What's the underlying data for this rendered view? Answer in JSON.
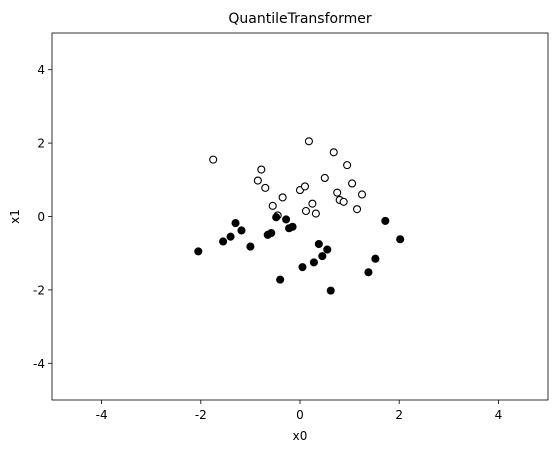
{
  "chart_data": {
    "type": "scatter",
    "title": "QuantileTransformer",
    "xlabel": "x0",
    "ylabel": "x1",
    "xlim": [
      -5,
      5
    ],
    "ylim": [
      -5,
      5
    ],
    "xticks": [
      -4,
      -2,
      0,
      2,
      4
    ],
    "yticks": [
      -4,
      -2,
      0,
      2,
      4
    ],
    "grid": false,
    "series": [
      {
        "marker": "open-circle",
        "color": "#000000",
        "fill": "#ffffff",
        "points": [
          [
            -1.75,
            1.55
          ],
          [
            -0.78,
            1.28
          ],
          [
            -0.85,
            0.98
          ],
          [
            -0.7,
            0.78
          ],
          [
            -0.35,
            0.52
          ],
          [
            -0.55,
            0.29
          ],
          [
            -0.45,
            0.03
          ],
          [
            0.0,
            0.72
          ],
          [
            0.1,
            0.82
          ],
          [
            0.18,
            2.05
          ],
          [
            0.25,
            0.35
          ],
          [
            0.12,
            0.15
          ],
          [
            0.32,
            0.08
          ],
          [
            0.5,
            1.05
          ],
          [
            0.68,
            1.75
          ],
          [
            0.75,
            0.65
          ],
          [
            0.8,
            0.45
          ],
          [
            0.88,
            0.4
          ],
          [
            0.95,
            1.4
          ],
          [
            1.05,
            0.9
          ],
          [
            1.15,
            0.2
          ],
          [
            1.25,
            0.6
          ]
        ]
      },
      {
        "marker": "filled-circle",
        "color": "#000000",
        "fill": "#000000",
        "points": [
          [
            -2.05,
            -0.95
          ],
          [
            -1.55,
            -0.68
          ],
          [
            -1.4,
            -0.55
          ],
          [
            -1.3,
            -0.18
          ],
          [
            -1.18,
            -0.38
          ],
          [
            -1.0,
            -0.82
          ],
          [
            -0.65,
            -0.5
          ],
          [
            -0.58,
            -0.45
          ],
          [
            -0.48,
            -0.02
          ],
          [
            -0.4,
            -1.72
          ],
          [
            -0.28,
            -0.08
          ],
          [
            -0.22,
            -0.32
          ],
          [
            -0.15,
            -0.28
          ],
          [
            0.05,
            -1.38
          ],
          [
            0.28,
            -1.25
          ],
          [
            0.38,
            -0.75
          ],
          [
            0.45,
            -1.08
          ],
          [
            0.55,
            -0.9
          ],
          [
            0.62,
            -2.02
          ],
          [
            1.38,
            -1.52
          ],
          [
            1.52,
            -1.15
          ],
          [
            1.72,
            -0.12
          ],
          [
            2.02,
            -0.62
          ]
        ]
      }
    ]
  }
}
